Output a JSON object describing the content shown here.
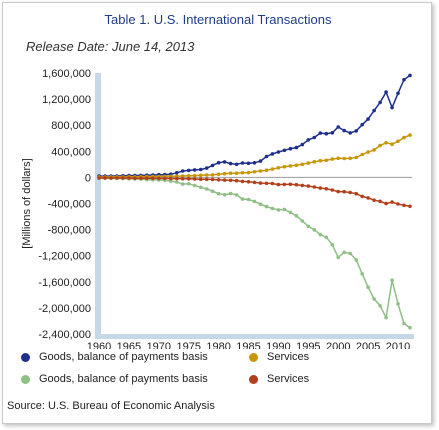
{
  "title": "Table 1. U.S. International Transactions",
  "subtitle": "Release Date: June 14, 2013",
  "source": "Source: U.S. Bureau of Economic Analysis",
  "chart_data": {
    "type": "line",
    "ylabel": "[Millions of dollars]",
    "xlabel": "",
    "xlim": [
      1960,
      2012
    ],
    "ylim": [
      -2400000,
      1600000
    ],
    "xticks": [
      1960,
      1965,
      1970,
      1975,
      1980,
      1985,
      1990,
      1995,
      2000,
      2005,
      2010
    ],
    "yticks": [
      1600000,
      1200000,
      800000,
      400000,
      0,
      -400000,
      -800000,
      -1200000,
      -1600000,
      -2000000,
      -2400000
    ],
    "ytick_labels": [
      "1,600,000",
      "1,200,000",
      "800,000",
      "400,000",
      "0",
      "-400,000",
      "-800,000",
      "-1,200,000",
      "-1,600,000",
      "-2,000,000",
      "-2,400,000"
    ],
    "xtick_labels": [
      "1960",
      "1965",
      "1970",
      "1975",
      "1980",
      "1985",
      "1990",
      "1995",
      "2000",
      "2005",
      "2010"
    ],
    "legend_position": "bottom",
    "x": [
      1960,
      1961,
      1962,
      1963,
      1964,
      1965,
      1966,
      1967,
      1968,
      1969,
      1970,
      1971,
      1972,
      1973,
      1974,
      1975,
      1976,
      1977,
      1978,
      1979,
      1980,
      1981,
      1982,
      1983,
      1984,
      1985,
      1986,
      1987,
      1988,
      1989,
      1990,
      1991,
      1992,
      1993,
      1994,
      1995,
      1996,
      1997,
      1998,
      1999,
      2000,
      2001,
      2002,
      2003,
      2004,
      2005,
      2006,
      2007,
      2008,
      2009,
      2010,
      2011,
      2012
    ],
    "series": [
      {
        "name": "Goods, balance of payments basis",
        "color": "#1f2f8c",
        "values": [
          20000,
          20000,
          21000,
          22000,
          25000,
          27000,
          29000,
          31000,
          33000,
          37000,
          42000,
          43000,
          49000,
          71000,
          98000,
          107000,
          115000,
          121000,
          142000,
          184000,
          225000,
          238000,
          212000,
          201000,
          220000,
          216000,
          223000,
          250000,
          320000,
          360000,
          389000,
          416000,
          440000,
          457000,
          502000,
          575000,
          612000,
          679000,
          670000,
          684000,
          772000,
          718000,
          682000,
          713000,
          807000,
          894000,
          1023000,
          1149000,
          1308000,
          1070000,
          1289000,
          1497000,
          1563000
        ]
      },
      {
        "name": "Services",
        "color": "#c8960a",
        "values": [
          6000,
          6500,
          7000,
          7500,
          8000,
          8500,
          9500,
          10500,
          11500,
          12500,
          14000,
          16000,
          17000,
          19000,
          22000,
          25000,
          28000,
          32000,
          37000,
          39000,
          47000,
          57000,
          64000,
          64000,
          71000,
          73000,
          86000,
          98000,
          110000,
          127000,
          147000,
          164000,
          177000,
          185000,
          200000,
          219000,
          239000,
          256000,
          262000,
          281000,
          295000,
          290000,
          292000,
          305000,
          351000,
          387000,
          421000,
          487000,
          532000,
          509000,
          553000,
          610000,
          649000
        ]
      },
      {
        "name": "Goods, balance of payments basis",
        "color": "#8fbf85",
        "values": [
          -15000,
          -14500,
          -16000,
          -17000,
          -18500,
          -21500,
          -25000,
          -26000,
          -33000,
          -36000,
          -40000,
          -45000,
          -56000,
          -70000,
          -103000,
          -98000,
          -124000,
          -151000,
          -176000,
          -212000,
          -250000,
          -265000,
          -248000,
          -268000,
          -332000,
          -338000,
          -368000,
          -410000,
          -448000,
          -477000,
          -498000,
          -490000,
          -536000,
          -589000,
          -668000,
          -749000,
          -803000,
          -877000,
          -918000,
          -1031000,
          -1226000,
          -1148000,
          -1167000,
          -1264000,
          -1477000,
          -1682000,
          -1862000,
          -1967000,
          -2149000,
          -1576000,
          -1939000,
          -2239000,
          -2303000
        ]
      },
      {
        "name": "Services",
        "color": "#b3401c",
        "values": [
          -8000,
          -8300,
          -8600,
          -9000,
          -9500,
          -10000,
          -11500,
          -12500,
          -13000,
          -14500,
          -15500,
          -16000,
          -18000,
          -19000,
          -21000,
          -22000,
          -24500,
          -27000,
          -29000,
          -32000,
          -37000,
          -42000,
          -44000,
          -50000,
          -61000,
          -68000,
          -76000,
          -87000,
          -90000,
          -94000,
          -110000,
          -107000,
          -106000,
          -112000,
          -123000,
          -134000,
          -147000,
          -164000,
          -174000,
          -193000,
          -218000,
          -219000,
          -232000,
          -250000,
          -291000,
          -314000,
          -350000,
          -367000,
          -402000,
          -379000,
          -408000,
          -427000,
          -443000
        ]
      }
    ]
  },
  "legend": [
    {
      "label": "Goods, balance of payments basis",
      "color": "#1f2f8c"
    },
    {
      "label": "Services",
      "color": "#c8960a"
    },
    {
      "label": "Goods, balance of payments basis",
      "color": "#8fbf85"
    },
    {
      "label": "Services",
      "color": "#b3401c"
    }
  ]
}
